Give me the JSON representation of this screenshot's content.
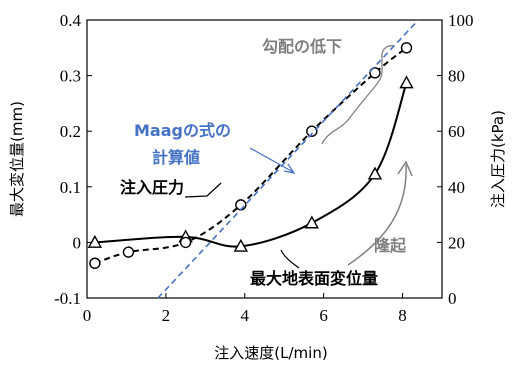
{
  "chart_data": {
    "type": "line",
    "xlabel": "注入速度(L/min)",
    "ylabel_left": "最大変位量(mm)",
    "ylabel_right": "注入圧力(kPa)",
    "xlim": [
      0,
      9
    ],
    "ylim_left": [
      -0.1,
      0.4
    ],
    "ylim_right": [
      0,
      100
    ],
    "x_ticks": [
      "0",
      "2",
      "4",
      "6",
      "8"
    ],
    "x_tick_values": [
      0,
      2,
      4,
      6,
      8
    ],
    "y_left_ticks": [
      "-0.1",
      "0",
      "0.1",
      "0.2",
      "0.3",
      "0.4"
    ],
    "y_left_tick_values": [
      -0.1,
      0,
      0.1,
      0.2,
      0.3,
      0.4
    ],
    "y_right_ticks": [
      "0",
      "20",
      "40",
      "60",
      "80",
      "100"
    ],
    "y_right_tick_values": [
      0,
      20,
      40,
      60,
      80,
      100
    ],
    "series": [
      {
        "name": "最大地表面変位量",
        "axis": "left",
        "marker": "triangle",
        "style": "solid",
        "color": "#000000",
        "x": [
          0.2,
          2.5,
          3.9,
          5.7,
          7.3,
          8.1
        ],
        "y": [
          0.0,
          0.01,
          -0.007,
          0.035,
          0.123,
          0.287
        ]
      },
      {
        "name": "注入圧力",
        "axis": "right",
        "marker": "circle",
        "style": "dashed",
        "color": "#000000",
        "x": [
          0.2,
          1.05,
          2.5,
          3.9,
          5.7,
          7.3,
          8.1
        ],
        "y": [
          12.5,
          16.5,
          20.0,
          33.5,
          60.0,
          81.0,
          90.0
        ]
      },
      {
        "name": "Maagの式の計算値",
        "axis": "left",
        "marker": "none",
        "style": "dashed",
        "color": "#4472c4",
        "x": [
          1.8,
          8.4
        ],
        "y": [
          -0.1,
          0.4
        ]
      }
    ],
    "annotations": {
      "maag": [
        "Maagの式の",
        "計算値"
      ],
      "pressure": "注入圧力",
      "displacement": "最大地表面変位量",
      "gradient": "勾配の低下",
      "heave": "隆起"
    },
    "colors": {
      "maag": "#4472c4",
      "gray": "#808080",
      "axis": "#000000"
    },
    "grid": false
  }
}
